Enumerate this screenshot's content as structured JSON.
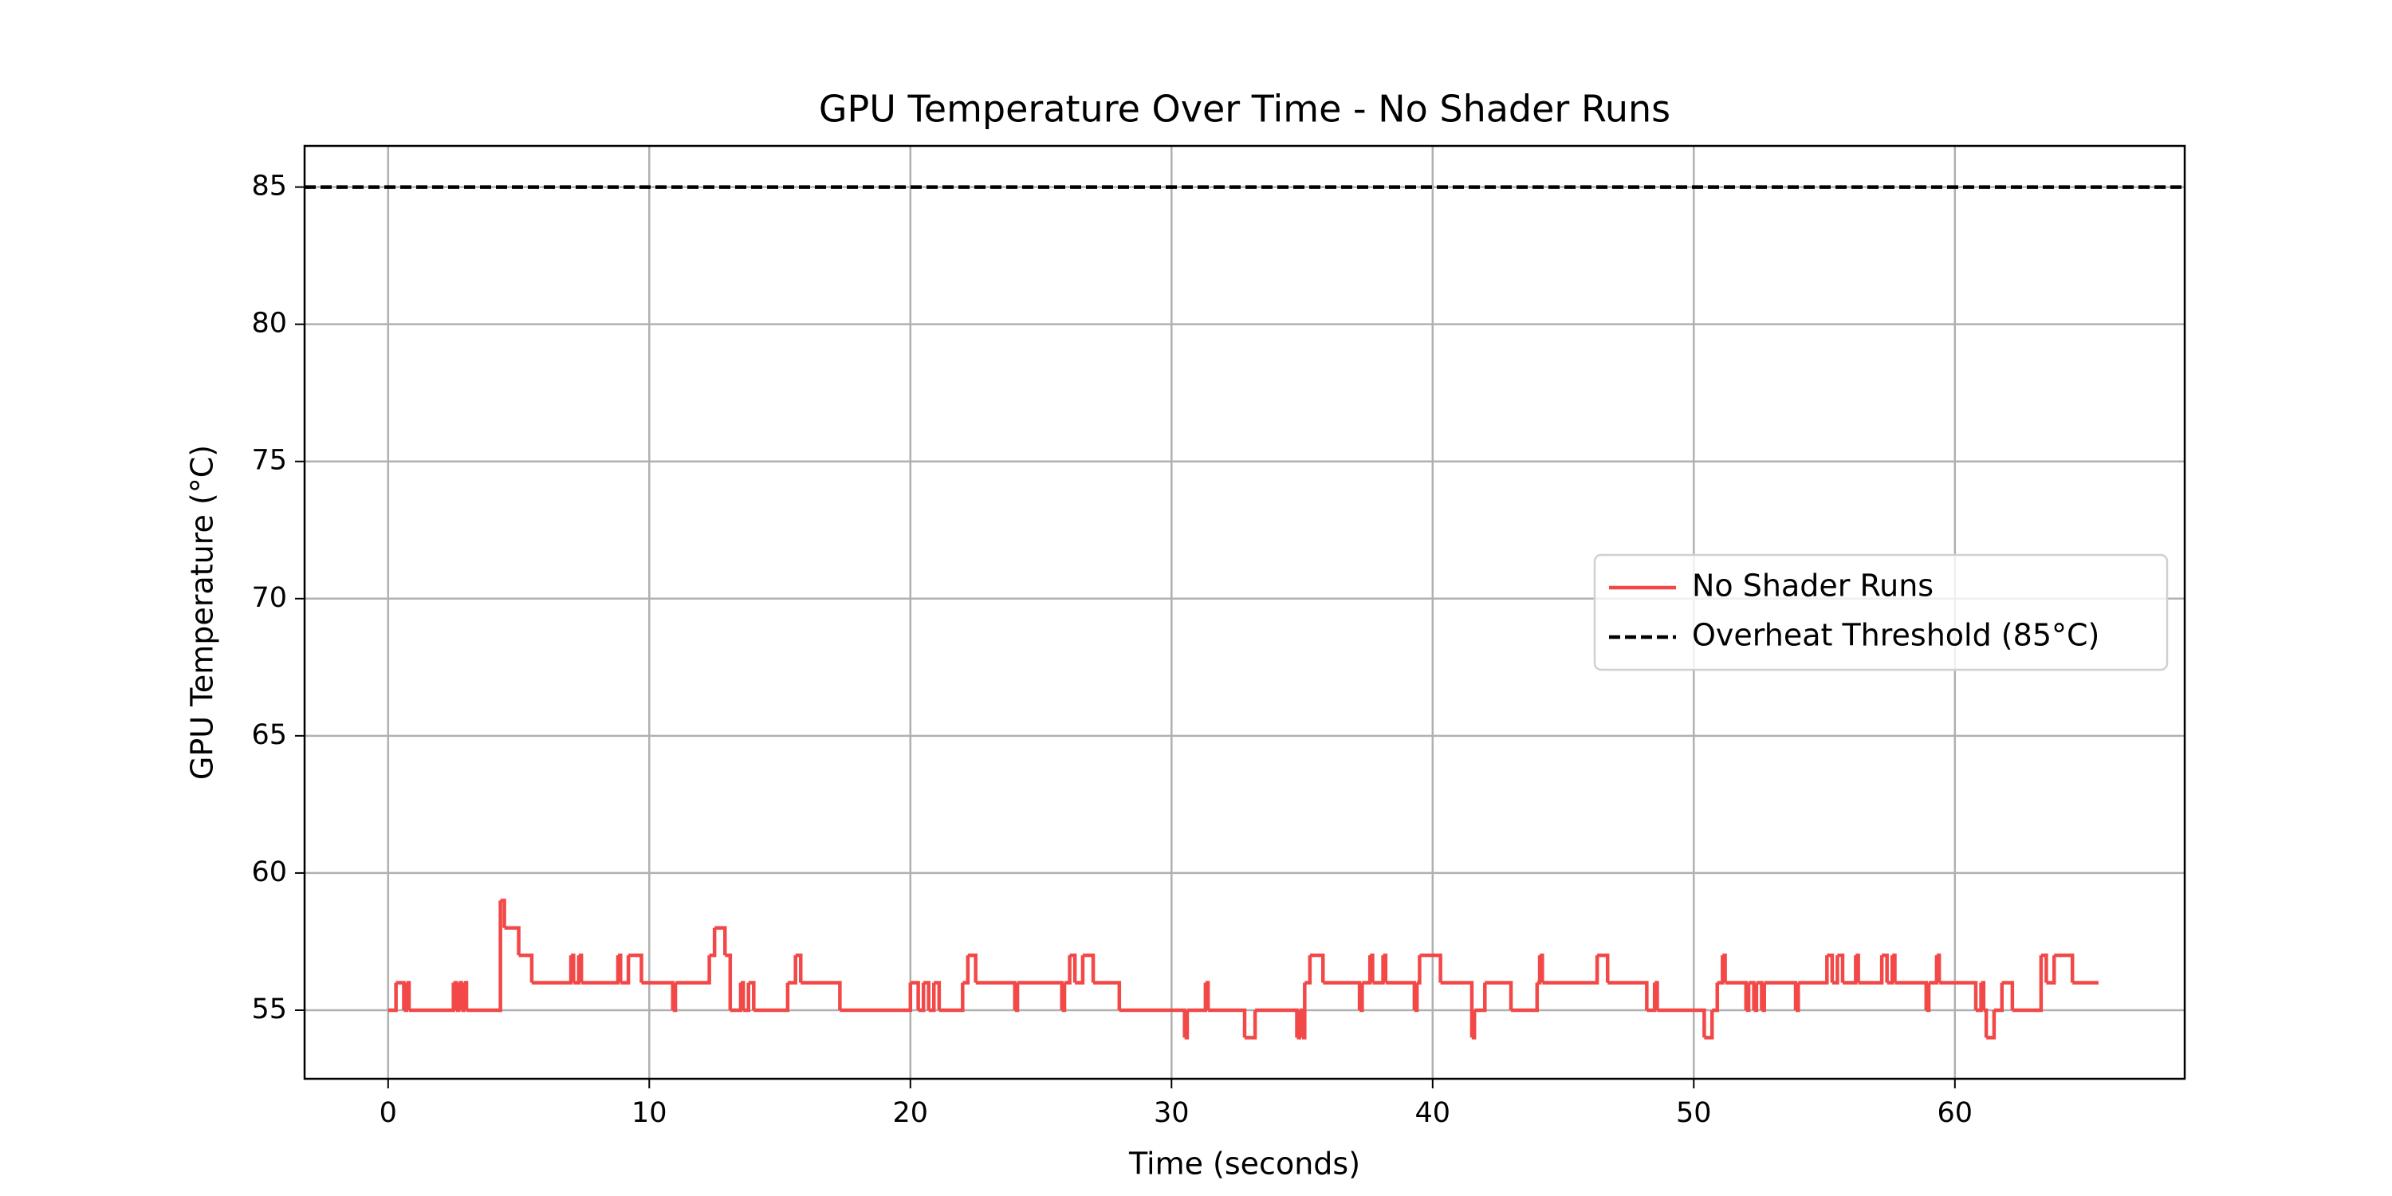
{
  "chart_data": {
    "type": "line",
    "title": "GPU Temperature Over Time - No Shader Runs",
    "x_label": "Time (seconds)",
    "y_label": "GPU Temperature (°C)",
    "drawstyle": "steps-post",
    "x": [
      0,
      0.3,
      0.6,
      0.7,
      0.8,
      2.5,
      2.6,
      2.7,
      2.8,
      2.9,
      3.0,
      4.3,
      4.45,
      5.0,
      5.5,
      7.0,
      7.1,
      7.3,
      7.4,
      8.8,
      8.9,
      9.2,
      9.7,
      10.9,
      11.0,
      12.3,
      12.5,
      12.9,
      13.1,
      13.5,
      13.6,
      13.8,
      14.0,
      15.3,
      15.6,
      15.8,
      17.3,
      20.0,
      20.3,
      20.5,
      20.7,
      20.9,
      21.1,
      22.0,
      22.2,
      22.5,
      24.0,
      24.1,
      25.8,
      25.9,
      26.1,
      26.3,
      26.6,
      27.0,
      28.0,
      30.5,
      30.6,
      31.3,
      31.4,
      32.8,
      33.2,
      34.8,
      34.9,
      35.0,
      35.1,
      35.3,
      35.8,
      37.2,
      37.3,
      37.6,
      37.7,
      38.1,
      38.2,
      39.3,
      39.4,
      39.5,
      40.3,
      41.5,
      41.6,
      42.0,
      43.0,
      44.0,
      44.1,
      44.2,
      46.3,
      46.7,
      48.2,
      48.5,
      48.6,
      50.4,
      50.7,
      50.9,
      51.1,
      51.2,
      52.0,
      52.1,
      52.3,
      52.4,
      52.6,
      52.7,
      53.9,
      54.0,
      55.1,
      55.3,
      55.5,
      55.7,
      56.2,
      56.3,
      57.2,
      57.4,
      57.6,
      57.7,
      58.9,
      59.0,
      59.3,
      59.4,
      60.8,
      61.0,
      61.1,
      61.2,
      61.5,
      61.8,
      62.2,
      63.3,
      63.5,
      63.8,
      64.5,
      65.5
    ],
    "series": [
      {
        "name": "No Shader Runs",
        "color": "#f24848",
        "values": [
          55,
          56,
          55,
          56,
          55,
          56,
          55,
          56,
          55,
          56,
          55,
          59,
          58,
          57,
          56,
          57,
          56,
          57,
          56,
          57,
          56,
          57,
          56,
          55,
          56,
          57,
          58,
          57,
          55,
          56,
          55,
          56,
          55,
          56,
          57,
          56,
          55,
          56,
          55,
          56,
          55,
          56,
          55,
          56,
          57,
          56,
          55,
          56,
          55,
          56,
          57,
          56,
          57,
          56,
          55,
          54,
          55,
          56,
          55,
          54,
          55,
          54,
          55,
          54,
          56,
          57,
          56,
          55,
          56,
          57,
          56,
          57,
          56,
          55,
          56,
          57,
          56,
          54,
          55,
          56,
          55,
          56,
          57,
          56,
          57,
          56,
          55,
          56,
          55,
          54,
          55,
          56,
          57,
          56,
          55,
          56,
          55,
          56,
          55,
          56,
          55,
          56,
          57,
          56,
          57,
          56,
          57,
          56,
          57,
          56,
          57,
          56,
          55,
          56,
          57,
          56,
          55,
          56,
          55,
          54,
          55,
          56,
          55,
          57,
          56,
          57,
          56,
          56
        ]
      }
    ],
    "threshold": {
      "name": "Overheat Threshold (85°C)",
      "value": 85,
      "color": "#000000",
      "style": "dashed"
    },
    "xlim": [
      -3.2,
      68.8
    ],
    "ylim": [
      52.5,
      86.5
    ],
    "xticks": [
      0,
      10,
      20,
      30,
      40,
      50,
      60
    ],
    "yticks": [
      55,
      60,
      65,
      70,
      75,
      80,
      85
    ],
    "grid": true,
    "legend": "right"
  }
}
